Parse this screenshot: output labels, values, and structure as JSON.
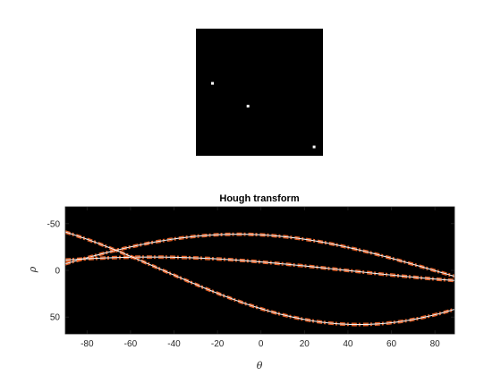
{
  "chart_data": [
    {
      "type": "heatmap",
      "title": "",
      "xlabel": "",
      "ylabel": "",
      "axes_visible": false,
      "background_color": "#000000",
      "point_color": "#ffffff",
      "image_size": [
        100,
        100
      ],
      "points": [
        {
          "x": 13,
          "y": 43
        },
        {
          "x": 41,
          "y": 61
        },
        {
          "x": 93,
          "y": 93
        }
      ]
    },
    {
      "type": "heatmap",
      "title": "Hough transform",
      "xlabel": "θ",
      "ylabel": "ρ",
      "background_color": "#000000",
      "curve_colors": [
        "#ffffff",
        "#ff6a2a",
        "#c8401a"
      ],
      "xlim": [
        -90,
        89
      ],
      "ylim": [
        -68,
        68
      ],
      "y_reversed": true,
      "x_ticks": [
        -80,
        -60,
        -40,
        -20,
        0,
        20,
        40,
        60,
        80
      ],
      "x_tick_labels": [
        "-80",
        "-60",
        "-40",
        "-20",
        "0",
        "20",
        "40",
        "60",
        "80"
      ],
      "y_ticks": [
        -50,
        0,
        50
      ],
      "y_tick_labels": [
        "-50",
        "0",
        "50"
      ],
      "series": [
        {
          "x0": -38,
          "y0": 7
        },
        {
          "x0": -9,
          "y0": 11
        },
        {
          "x0": 41,
          "y0": 41
        }
      ]
    }
  ]
}
